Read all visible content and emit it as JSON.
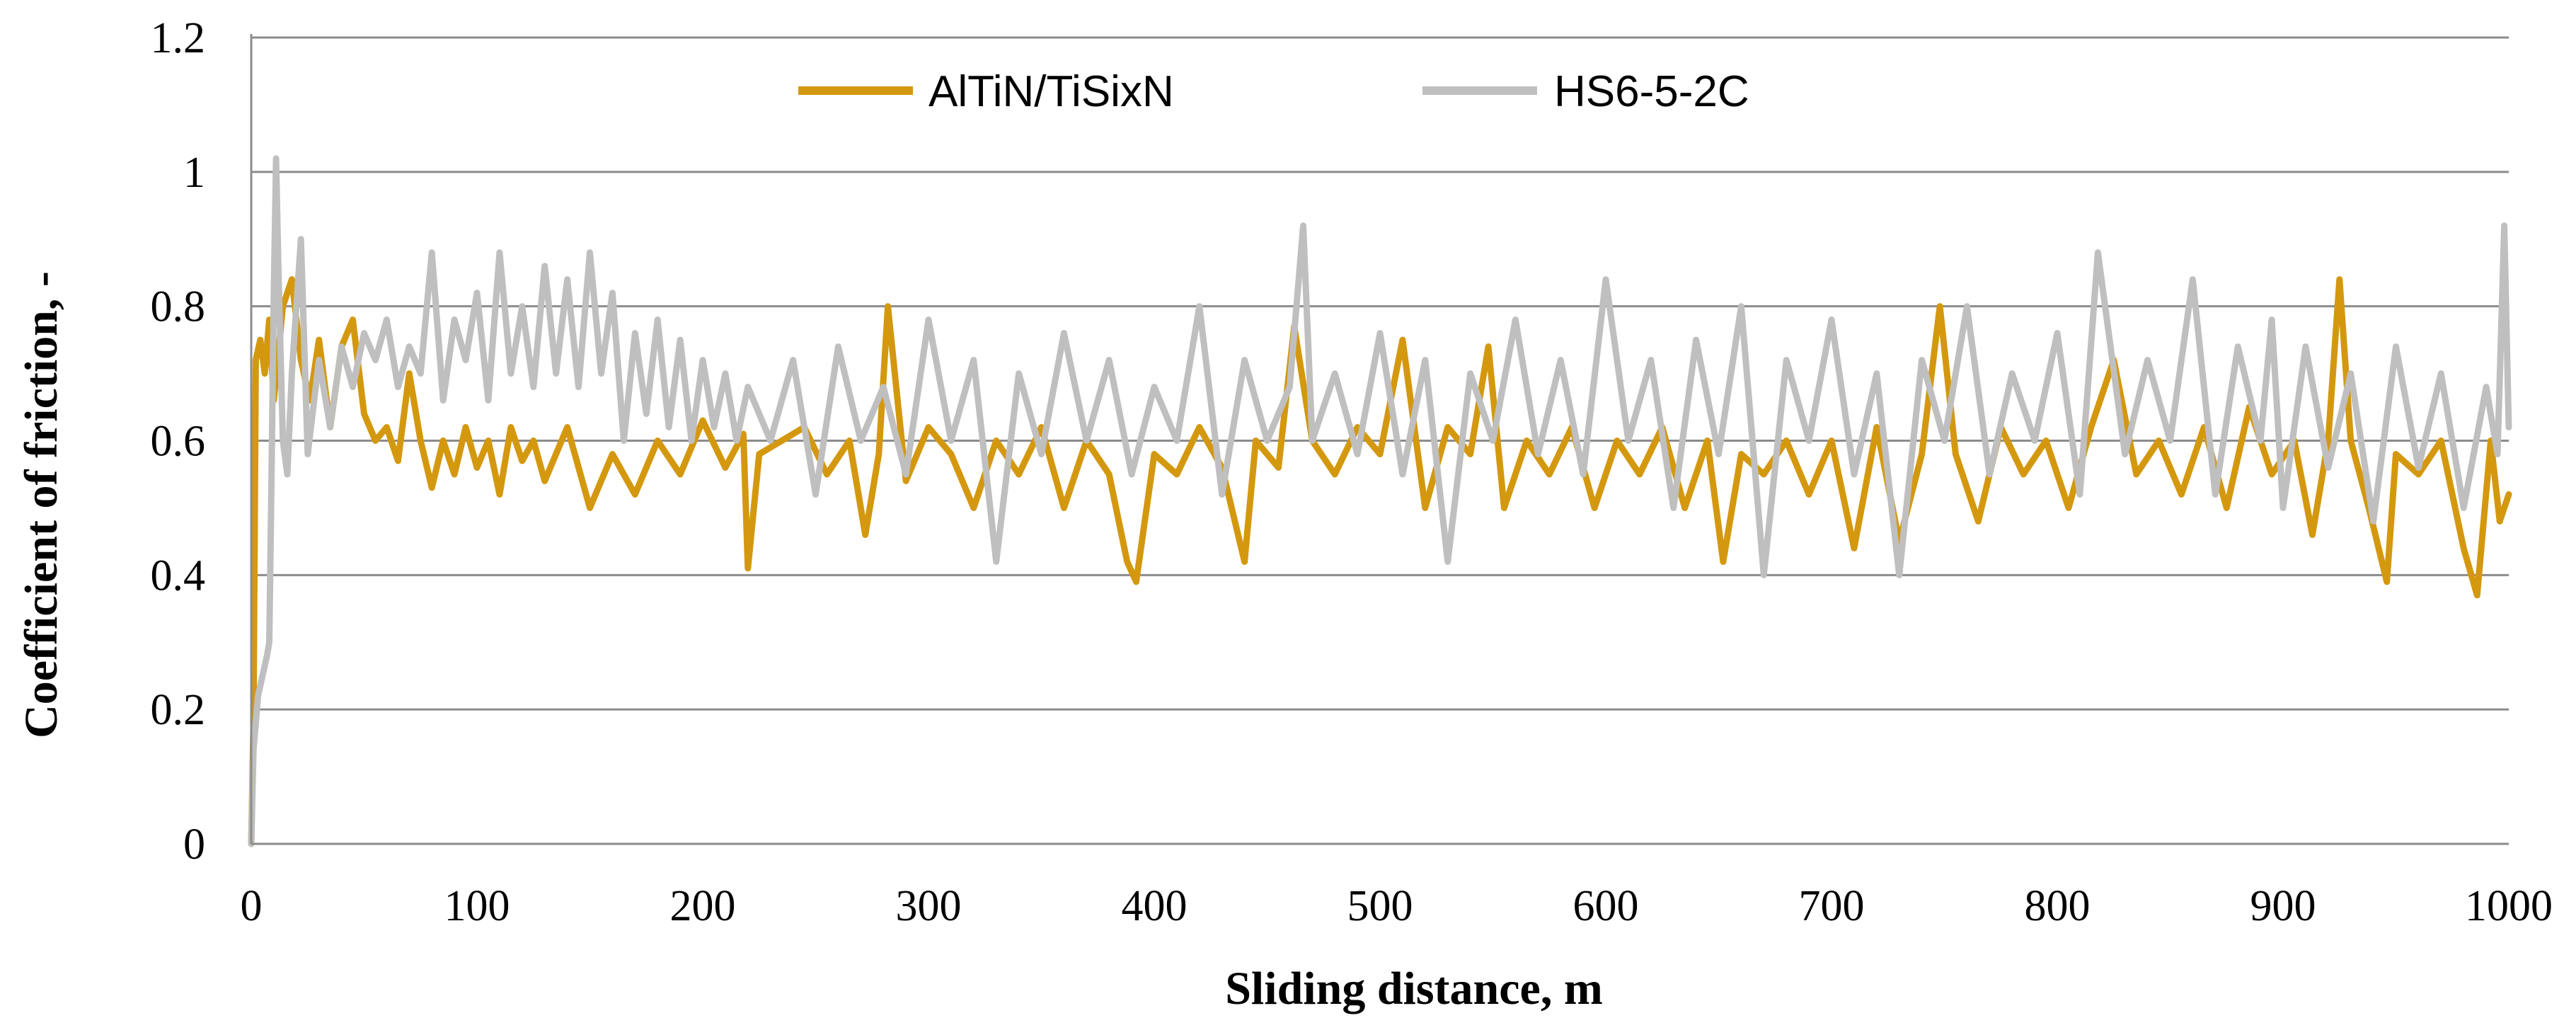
{
  "chart_data": {
    "type": "line",
    "title": "",
    "xlabel": "Sliding distance, m",
    "ylabel": "Coefficient of friction, -",
    "xlim": [
      0,
      1000
    ],
    "ylim": [
      0,
      1.2
    ],
    "x_ticks": [
      "0",
      "100",
      "200",
      "300",
      "400",
      "500",
      "600",
      "700",
      "800",
      "900",
      "1000"
    ],
    "y_ticks": [
      "0",
      "0.2",
      "0.4",
      "0.6",
      "0.8",
      "1",
      "1.2"
    ],
    "grid": "horizontal",
    "legend_position": "top-center",
    "series": [
      {
        "name": "AlTiN/TiSixN",
        "color": "#d4980f",
        "points": [
          [
            0,
            0.0
          ],
          [
            1,
            0.18
          ],
          [
            2,
            0.72
          ],
          [
            4,
            0.75
          ],
          [
            6,
            0.7
          ],
          [
            8,
            0.78
          ],
          [
            10,
            0.66
          ],
          [
            14,
            0.8
          ],
          [
            18,
            0.84
          ],
          [
            22,
            0.72
          ],
          [
            26,
            0.66
          ],
          [
            30,
            0.75
          ],
          [
            35,
            0.62
          ],
          [
            40,
            0.74
          ],
          [
            45,
            0.78
          ],
          [
            50,
            0.64
          ],
          [
            55,
            0.6
          ],
          [
            60,
            0.62
          ],
          [
            65,
            0.57
          ],
          [
            70,
            0.7
          ],
          [
            75,
            0.6
          ],
          [
            80,
            0.53
          ],
          [
            85,
            0.6
          ],
          [
            90,
            0.55
          ],
          [
            95,
            0.62
          ],
          [
            100,
            0.56
          ],
          [
            105,
            0.6
          ],
          [
            110,
            0.52
          ],
          [
            115,
            0.62
          ],
          [
            120,
            0.57
          ],
          [
            125,
            0.6
          ],
          [
            130,
            0.54
          ],
          [
            140,
            0.62
          ],
          [
            150,
            0.5
          ],
          [
            160,
            0.58
          ],
          [
            170,
            0.52
          ],
          [
            180,
            0.6
          ],
          [
            190,
            0.55
          ],
          [
            200,
            0.63
          ],
          [
            210,
            0.56
          ],
          [
            218,
            0.61
          ],
          [
            220,
            0.41
          ],
          [
            225,
            0.58
          ],
          [
            235,
            0.6
          ],
          [
            245,
            0.62
          ],
          [
            255,
            0.55
          ],
          [
            265,
            0.6
          ],
          [
            272,
            0.46
          ],
          [
            278,
            0.58
          ],
          [
            282,
            0.8
          ],
          [
            290,
            0.54
          ],
          [
            300,
            0.62
          ],
          [
            310,
            0.58
          ],
          [
            320,
            0.5
          ],
          [
            330,
            0.6
          ],
          [
            340,
            0.55
          ],
          [
            350,
            0.62
          ],
          [
            360,
            0.5
          ],
          [
            370,
            0.6
          ],
          [
            380,
            0.55
          ],
          [
            388,
            0.42
          ],
          [
            392,
            0.39
          ],
          [
            400,
            0.58
          ],
          [
            410,
            0.55
          ],
          [
            420,
            0.62
          ],
          [
            430,
            0.56
          ],
          [
            440,
            0.42
          ],
          [
            445,
            0.6
          ],
          [
            455,
            0.56
          ],
          [
            462,
            0.77
          ],
          [
            470,
            0.6
          ],
          [
            480,
            0.55
          ],
          [
            490,
            0.62
          ],
          [
            500,
            0.58
          ],
          [
            510,
            0.75
          ],
          [
            520,
            0.5
          ],
          [
            530,
            0.62
          ],
          [
            540,
            0.58
          ],
          [
            548,
            0.74
          ],
          [
            555,
            0.5
          ],
          [
            565,
            0.6
          ],
          [
            575,
            0.55
          ],
          [
            585,
            0.62
          ],
          [
            595,
            0.5
          ],
          [
            605,
            0.6
          ],
          [
            615,
            0.55
          ],
          [
            625,
            0.62
          ],
          [
            635,
            0.5
          ],
          [
            645,
            0.6
          ],
          [
            652,
            0.42
          ],
          [
            660,
            0.58
          ],
          [
            670,
            0.55
          ],
          [
            680,
            0.6
          ],
          [
            690,
            0.52
          ],
          [
            700,
            0.6
          ],
          [
            710,
            0.44
          ],
          [
            720,
            0.62
          ],
          [
            730,
            0.45
          ],
          [
            740,
            0.58
          ],
          [
            748,
            0.8
          ],
          [
            755,
            0.58
          ],
          [
            765,
            0.48
          ],
          [
            775,
            0.62
          ],
          [
            785,
            0.55
          ],
          [
            795,
            0.6
          ],
          [
            805,
            0.5
          ],
          [
            815,
            0.62
          ],
          [
            825,
            0.72
          ],
          [
            835,
            0.55
          ],
          [
            845,
            0.6
          ],
          [
            855,
            0.52
          ],
          [
            865,
            0.62
          ],
          [
            875,
            0.5
          ],
          [
            885,
            0.65
          ],
          [
            895,
            0.55
          ],
          [
            905,
            0.6
          ],
          [
            913,
            0.46
          ],
          [
            920,
            0.6
          ],
          [
            925,
            0.84
          ],
          [
            930,
            0.6
          ],
          [
            938,
            0.5
          ],
          [
            946,
            0.39
          ],
          [
            950,
            0.58
          ],
          [
            960,
            0.55
          ],
          [
            970,
            0.6
          ],
          [
            980,
            0.44
          ],
          [
            986,
            0.37
          ],
          [
            992,
            0.6
          ],
          [
            996,
            0.48
          ],
          [
            1000,
            0.52
          ]
        ]
      },
      {
        "name": "HS6-5-2C",
        "color": "#bfbfbf",
        "points": [
          [
            0,
            0.0
          ],
          [
            1,
            0.14
          ],
          [
            3,
            0.22
          ],
          [
            5,
            0.25
          ],
          [
            7,
            0.28
          ],
          [
            8,
            0.3
          ],
          [
            9,
            0.55
          ],
          [
            10,
            0.82
          ],
          [
            11,
            1.02
          ],
          [
            12,
            0.86
          ],
          [
            14,
            0.6
          ],
          [
            16,
            0.55
          ],
          [
            18,
            0.7
          ],
          [
            22,
            0.9
          ],
          [
            25,
            0.58
          ],
          [
            30,
            0.72
          ],
          [
            35,
            0.62
          ],
          [
            40,
            0.74
          ],
          [
            45,
            0.68
          ],
          [
            50,
            0.76
          ],
          [
            55,
            0.72
          ],
          [
            60,
            0.78
          ],
          [
            65,
            0.68
          ],
          [
            70,
            0.74
          ],
          [
            75,
            0.7
          ],
          [
            80,
            0.88
          ],
          [
            85,
            0.66
          ],
          [
            90,
            0.78
          ],
          [
            95,
            0.72
          ],
          [
            100,
            0.82
          ],
          [
            105,
            0.66
          ],
          [
            110,
            0.88
          ],
          [
            115,
            0.7
          ],
          [
            120,
            0.8
          ],
          [
            125,
            0.68
          ],
          [
            130,
            0.86
          ],
          [
            135,
            0.7
          ],
          [
            140,
            0.84
          ],
          [
            145,
            0.68
          ],
          [
            150,
            0.88
          ],
          [
            155,
            0.7
          ],
          [
            160,
            0.82
          ],
          [
            165,
            0.6
          ],
          [
            170,
            0.76
          ],
          [
            175,
            0.64
          ],
          [
            180,
            0.78
          ],
          [
            185,
            0.62
          ],
          [
            190,
            0.75
          ],
          [
            195,
            0.6
          ],
          [
            200,
            0.72
          ],
          [
            205,
            0.62
          ],
          [
            210,
            0.7
          ],
          [
            215,
            0.6
          ],
          [
            220,
            0.68
          ],
          [
            230,
            0.6
          ],
          [
            240,
            0.72
          ],
          [
            250,
            0.52
          ],
          [
            260,
            0.74
          ],
          [
            270,
            0.6
          ],
          [
            280,
            0.68
          ],
          [
            290,
            0.55
          ],
          [
            300,
            0.78
          ],
          [
            310,
            0.6
          ],
          [
            320,
            0.72
          ],
          [
            330,
            0.42
          ],
          [
            340,
            0.7
          ],
          [
            350,
            0.58
          ],
          [
            360,
            0.76
          ],
          [
            370,
            0.6
          ],
          [
            380,
            0.72
          ],
          [
            390,
            0.55
          ],
          [
            400,
            0.68
          ],
          [
            410,
            0.6
          ],
          [
            420,
            0.8
          ],
          [
            430,
            0.52
          ],
          [
            440,
            0.72
          ],
          [
            450,
            0.6
          ],
          [
            460,
            0.68
          ],
          [
            466,
            0.92
          ],
          [
            470,
            0.6
          ],
          [
            480,
            0.7
          ],
          [
            490,
            0.58
          ],
          [
            500,
            0.76
          ],
          [
            510,
            0.55
          ],
          [
            520,
            0.72
          ],
          [
            530,
            0.42
          ],
          [
            540,
            0.7
          ],
          [
            550,
            0.6
          ],
          [
            560,
            0.78
          ],
          [
            570,
            0.58
          ],
          [
            580,
            0.72
          ],
          [
            590,
            0.55
          ],
          [
            600,
            0.84
          ],
          [
            610,
            0.6
          ],
          [
            620,
            0.72
          ],
          [
            630,
            0.5
          ],
          [
            640,
            0.75
          ],
          [
            650,
            0.58
          ],
          [
            660,
            0.8
          ],
          [
            670,
            0.4
          ],
          [
            680,
            0.72
          ],
          [
            690,
            0.6
          ],
          [
            700,
            0.78
          ],
          [
            710,
            0.55
          ],
          [
            720,
            0.7
          ],
          [
            730,
            0.4
          ],
          [
            740,
            0.72
          ],
          [
            750,
            0.6
          ],
          [
            760,
            0.8
          ],
          [
            770,
            0.55
          ],
          [
            780,
            0.7
          ],
          [
            790,
            0.6
          ],
          [
            800,
            0.76
          ],
          [
            810,
            0.52
          ],
          [
            818,
            0.88
          ],
          [
            830,
            0.58
          ],
          [
            840,
            0.72
          ],
          [
            850,
            0.6
          ],
          [
            860,
            0.84
          ],
          [
            870,
            0.52
          ],
          [
            880,
            0.74
          ],
          [
            890,
            0.6
          ],
          [
            895,
            0.78
          ],
          [
            900,
            0.5
          ],
          [
            910,
            0.74
          ],
          [
            920,
            0.56
          ],
          [
            930,
            0.7
          ],
          [
            940,
            0.48
          ],
          [
            950,
            0.74
          ],
          [
            960,
            0.56
          ],
          [
            970,
            0.7
          ],
          [
            980,
            0.5
          ],
          [
            990,
            0.68
          ],
          [
            995,
            0.58
          ],
          [
            998,
            0.92
          ],
          [
            1000,
            0.62
          ]
        ]
      }
    ]
  }
}
